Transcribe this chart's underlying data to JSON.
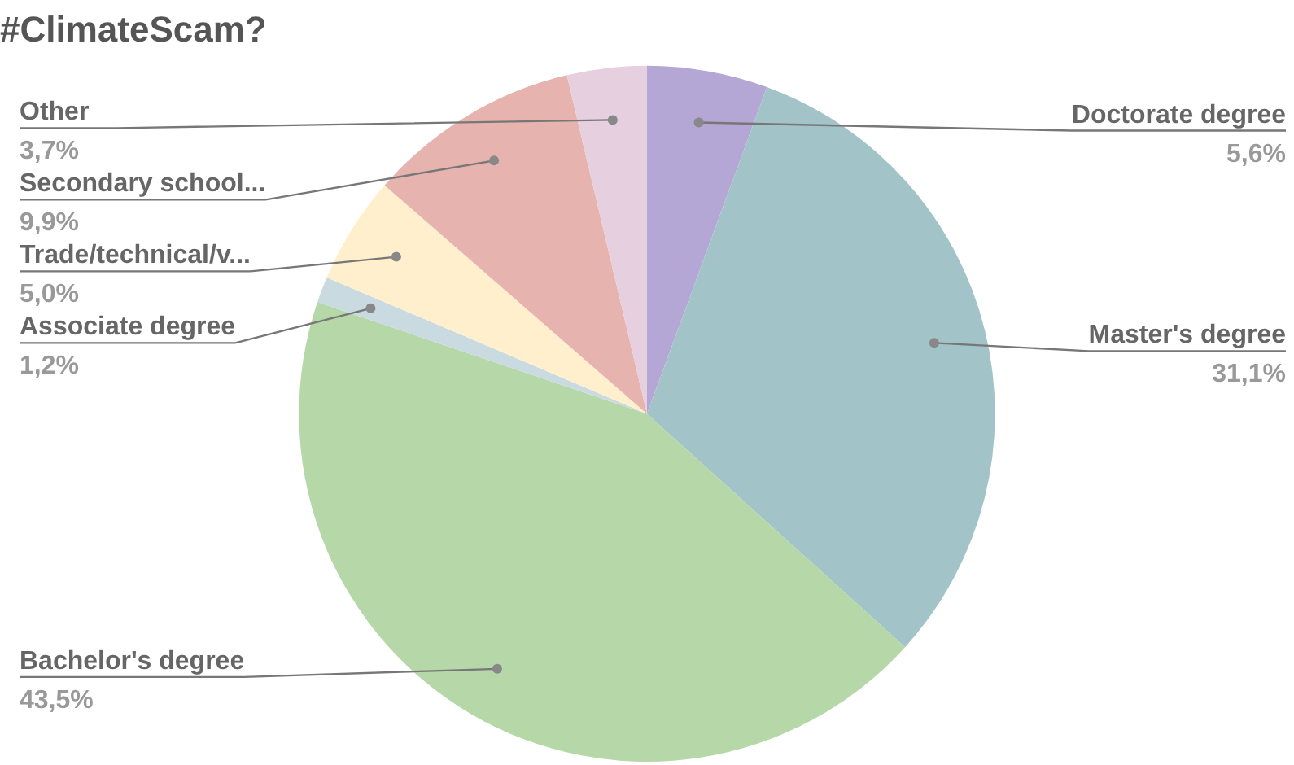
{
  "chart_data": {
    "type": "pie",
    "title": "#ClimateScam?",
    "categories": [
      "Doctorate degree",
      "Master's degree",
      "Bachelor's degree",
      "Associate degree",
      "Trade/technical/v...",
      "Secondary school...",
      "Other"
    ],
    "values": [
      5.6,
      31.1,
      43.5,
      1.2,
      5.0,
      9.9,
      3.7
    ],
    "value_labels": [
      "5,6%",
      "31,1%",
      "43,5%",
      "1,2%",
      "5,0%",
      "9,9%",
      "3,7%"
    ],
    "colors": [
      "#b4a7d6",
      "#a2c4c9",
      "#b6d7a8",
      "#c9dae0",
      "#ffefcc",
      "#e6b3ae",
      "#e6cfdf"
    ],
    "legend": false
  }
}
